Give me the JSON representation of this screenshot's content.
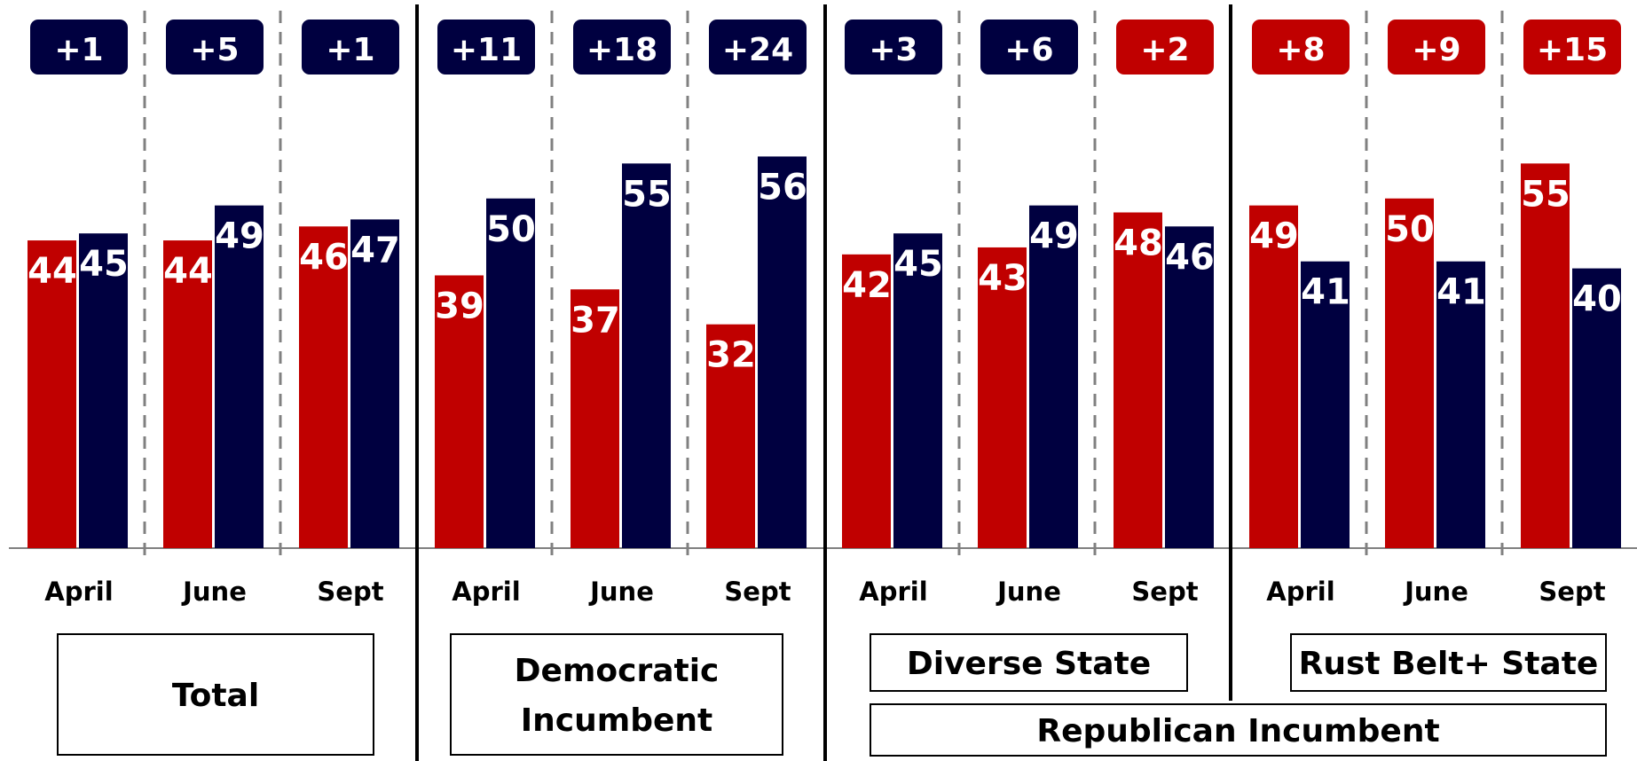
{
  "colors": {
    "republican": "#c00000",
    "democrat": "#000040",
    "axis": "#808080",
    "divider": "#000000"
  },
  "chart_data": {
    "type": "bar",
    "ylim": [
      0,
      70
    ],
    "grid": false,
    "series": [
      {
        "color": "#c00000"
      },
      {
        "color": "#000040"
      }
    ],
    "groups": [
      {
        "group": "Total",
        "labels": [
          "Total"
        ],
        "months": [
          {
            "month": "April",
            "red": 44,
            "blue": 45,
            "margin": "+1",
            "margin_color": "#000040"
          },
          {
            "month": "June",
            "red": 44,
            "blue": 49,
            "margin": "+5",
            "margin_color": "#000040"
          },
          {
            "month": "Sept",
            "red": 46,
            "blue": 47,
            "margin": "+1",
            "margin_color": "#000040"
          }
        ]
      },
      {
        "group": "Democratic Incumbent",
        "labels": [
          "Democratic",
          "Incumbent"
        ],
        "months": [
          {
            "month": "April",
            "red": 39,
            "blue": 50,
            "margin": "+11",
            "margin_color": "#000040"
          },
          {
            "month": "June",
            "red": 37,
            "blue": 55,
            "margin": "+18",
            "margin_color": "#000040"
          },
          {
            "month": "Sept",
            "red": 32,
            "blue": 56,
            "margin": "+24",
            "margin_color": "#000040"
          }
        ]
      },
      {
        "group": "Diverse State",
        "labels": [
          "Diverse State"
        ],
        "months": [
          {
            "month": "April",
            "red": 42,
            "blue": 45,
            "margin": "+3",
            "margin_color": "#000040"
          },
          {
            "month": "June",
            "red": 43,
            "blue": 49,
            "margin": "+6",
            "margin_color": "#000040"
          },
          {
            "month": "Sept",
            "red": 48,
            "blue": 46,
            "margin": "+2",
            "margin_color": "#c00000"
          }
        ]
      },
      {
        "group": "Rust Belt+ State",
        "labels": [
          "Rust Belt+ State"
        ],
        "months": [
          {
            "month": "April",
            "red": 49,
            "blue": 41,
            "margin": "+8",
            "margin_color": "#c00000"
          },
          {
            "month": "June",
            "red": 50,
            "blue": 41,
            "margin": "+9",
            "margin_color": "#c00000"
          },
          {
            "month": "Sept",
            "red": 55,
            "blue": 40,
            "margin": "+15",
            "margin_color": "#c00000"
          }
        ]
      }
    ],
    "annotations": [
      "Republican Incumbent"
    ]
  }
}
